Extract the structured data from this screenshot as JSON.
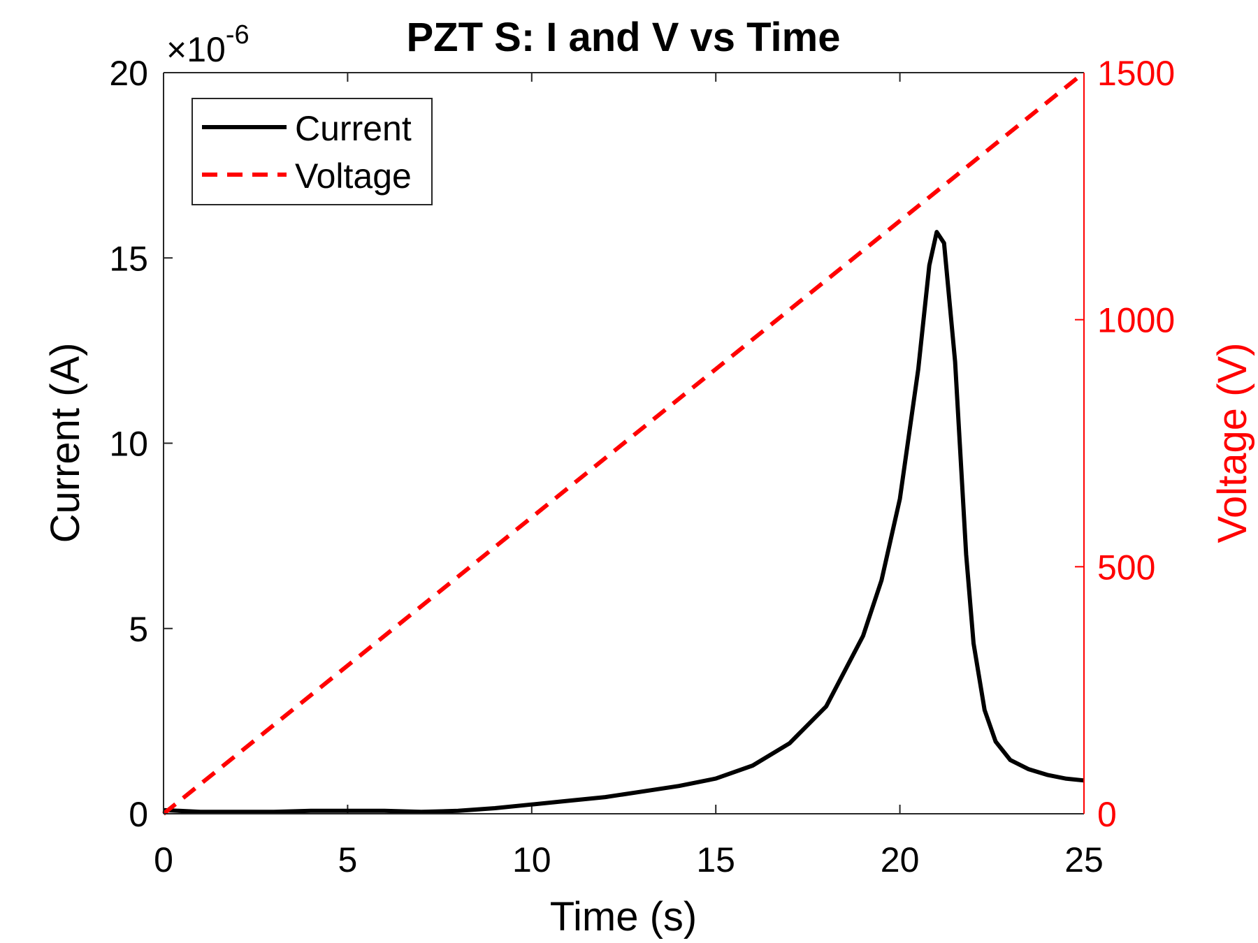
{
  "chart_data": {
    "type": "line",
    "title": "PZT S: I and V vs Time",
    "xlabel": "Time (s)",
    "ylabel_left": "Current (A)",
    "ylabel_right": "Voltage (V)",
    "xlim": [
      0,
      25
    ],
    "ylim_left": [
      0,
      20
    ],
    "ylim_right": [
      0,
      1500
    ],
    "x_ticks": [
      "0",
      "5",
      "10",
      "15",
      "20",
      "25"
    ],
    "y_ticks_left": [
      "0",
      "5",
      "10",
      "15",
      "20"
    ],
    "y_ticks_right": [
      "0",
      "500",
      "1000",
      "1500"
    ],
    "left_exponent_base": "×10",
    "left_exponent_power": "-6",
    "legend_position": "top-left",
    "colors": {
      "current": "#000000",
      "voltage": "#ff0000"
    },
    "series": [
      {
        "name": "Current",
        "axis": "left",
        "style": "solid",
        "x": [
          0,
          1,
          2,
          3,
          4,
          5,
          6,
          7,
          8,
          9,
          10,
          11,
          12,
          13,
          14,
          15,
          16,
          17,
          18,
          19,
          19.5,
          20,
          20.5,
          20.8,
          21,
          21.2,
          21.5,
          21.8,
          22,
          22.3,
          22.6,
          23,
          23.5,
          24,
          24.5,
          25
        ],
        "values": [
          0.1,
          0.05,
          0.05,
          0.05,
          0.08,
          0.08,
          0.08,
          0.05,
          0.08,
          0.15,
          0.25,
          0.35,
          0.45,
          0.6,
          0.75,
          0.95,
          1.3,
          1.9,
          2.9,
          4.8,
          6.3,
          8.5,
          12.0,
          14.8,
          15.7,
          15.4,
          12.2,
          7.0,
          4.6,
          2.8,
          1.95,
          1.45,
          1.2,
          1.05,
          0.95,
          0.9
        ]
      },
      {
        "name": "Voltage",
        "axis": "right",
        "style": "dashed",
        "x": [
          0,
          2.5,
          5,
          7.5,
          10,
          12.5,
          15,
          17.5,
          20,
          22.5,
          25
        ],
        "values": [
          0,
          150,
          300,
          450,
          600,
          750,
          900,
          1050,
          1200,
          1350,
          1500
        ]
      }
    ]
  }
}
